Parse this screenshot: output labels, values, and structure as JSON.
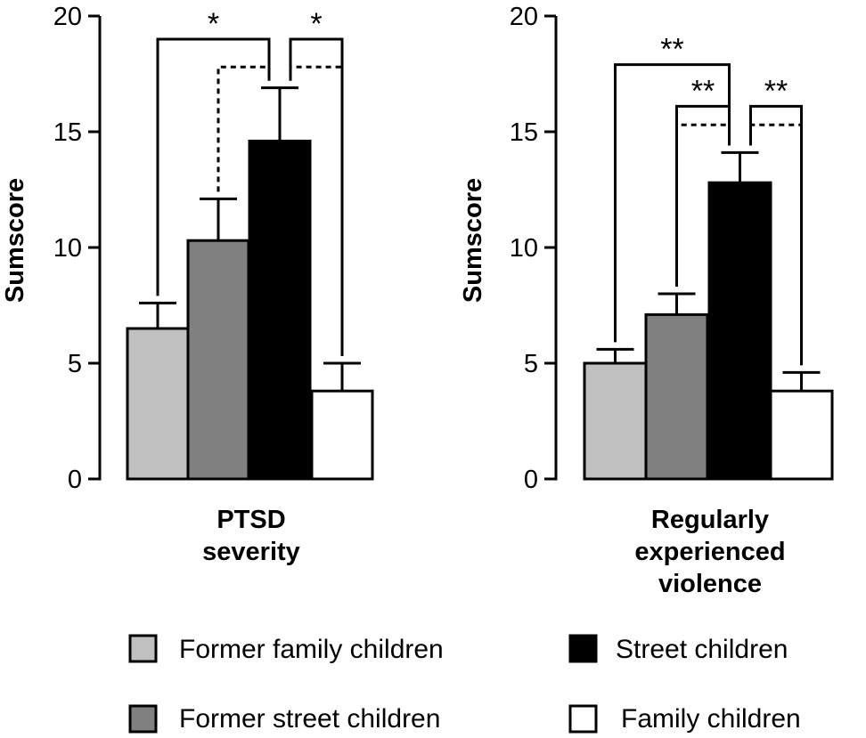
{
  "chart_data": [
    {
      "type": "bar",
      "title": "",
      "ylabel": "Sumscore",
      "xlabel_lines": [
        "PTSD",
        "severity"
      ],
      "ylim": [
        0,
        20
      ],
      "yticks": [
        0,
        5,
        10,
        15,
        20
      ],
      "series": [
        {
          "name": "Former family children",
          "value": 6.5,
          "error": 1.1,
          "color": "#c0c0c0"
        },
        {
          "name": "Former street children",
          "value": 10.3,
          "error": 1.8,
          "color": "#808080"
        },
        {
          "name": "Street children",
          "value": 14.6,
          "error": 2.3,
          "color": "#000000"
        },
        {
          "name": "Family children",
          "value": 3.8,
          "error": 1.2,
          "color": "#ffffff"
        }
      ],
      "significance": [
        {
          "from": 0,
          "to": 2,
          "label": "*",
          "style": "solid",
          "level": 19.0
        },
        {
          "from": 1,
          "to": 2,
          "label": "",
          "style": "dashed",
          "level": 17.8
        },
        {
          "from": 2,
          "to": 3,
          "label": "*",
          "style": "solid",
          "level": 19.0
        },
        {
          "from": 2,
          "to": 3,
          "label": "",
          "style": "dashed",
          "level": 17.8
        }
      ]
    },
    {
      "type": "bar",
      "title": "",
      "ylabel": "Sumscore",
      "xlabel_lines": [
        "Regularly",
        "experienced",
        "violence"
      ],
      "ylim": [
        0,
        20
      ],
      "yticks": [
        0,
        5,
        10,
        15,
        20
      ],
      "series": [
        {
          "name": "Former family children",
          "value": 5.0,
          "error": 0.6,
          "color": "#c0c0c0"
        },
        {
          "name": "Former street children",
          "value": 7.1,
          "error": 0.9,
          "color": "#808080"
        },
        {
          "name": "Street children",
          "value": 12.8,
          "error": 1.3,
          "color": "#000000"
        },
        {
          "name": "Family children",
          "value": 3.8,
          "error": 0.8,
          "color": "#ffffff"
        }
      ],
      "significance": [
        {
          "from": 0,
          "to": 2,
          "label": "**",
          "style": "solid",
          "level": 17.9
        },
        {
          "from": 1,
          "to": 2,
          "label": "**",
          "style": "solid",
          "level": 16.1
        },
        {
          "from": 2,
          "to": 3,
          "label": "**",
          "style": "solid",
          "level": 16.1
        },
        {
          "from": 1,
          "to": 2,
          "label": "",
          "style": "dashed",
          "level": 15.3
        },
        {
          "from": 2,
          "to": 3,
          "label": "",
          "style": "dashed",
          "level": 15.3
        }
      ]
    }
  ],
  "legend": [
    {
      "label": "Former family children",
      "color": "#c0c0c0"
    },
    {
      "label": "Street children",
      "color": "#000000"
    },
    {
      "label": "Former street children",
      "color": "#808080"
    },
    {
      "label": "Family children",
      "color": "#ffffff"
    }
  ]
}
